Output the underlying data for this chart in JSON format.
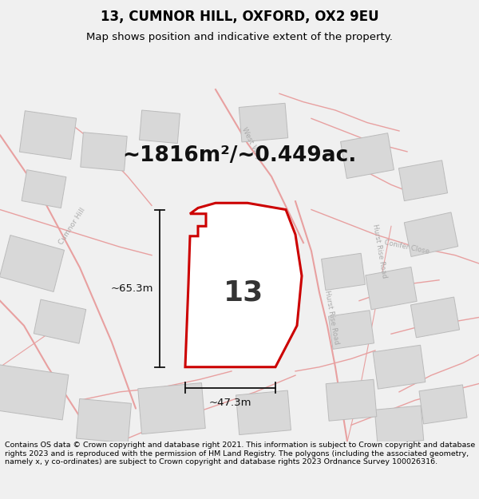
{
  "title": "13, CUMNOR HILL, OXFORD, OX2 9EU",
  "subtitle": "Map shows position and indicative extent of the property.",
  "area_text": "~1816m²/~0.449ac.",
  "plot_number": "13",
  "dim_width": "~47.3m",
  "dim_height": "~65.3m",
  "footer": "Contains OS data © Crown copyright and database right 2021. This information is subject to Crown copyright and database rights 2023 and is reproduced with the permission of HM Land Registry. The polygons (including the associated geometry, namely x, y co-ordinates) are subject to Crown copyright and database rights 2023 Ordnance Survey 100026316.",
  "bg_color": "#f0f0f0",
  "map_bg": "#f8f8f8",
  "road_color": "#e8a0a0",
  "building_color": "#d8d8d8",
  "building_edge": "#bbbbbb",
  "plot_fill": "#ffffff",
  "plot_edge": "#cc0000",
  "title_color": "#000000",
  "footer_color": "#000000",
  "dim_color": "#111111",
  "label_color": "#aaaaaa"
}
